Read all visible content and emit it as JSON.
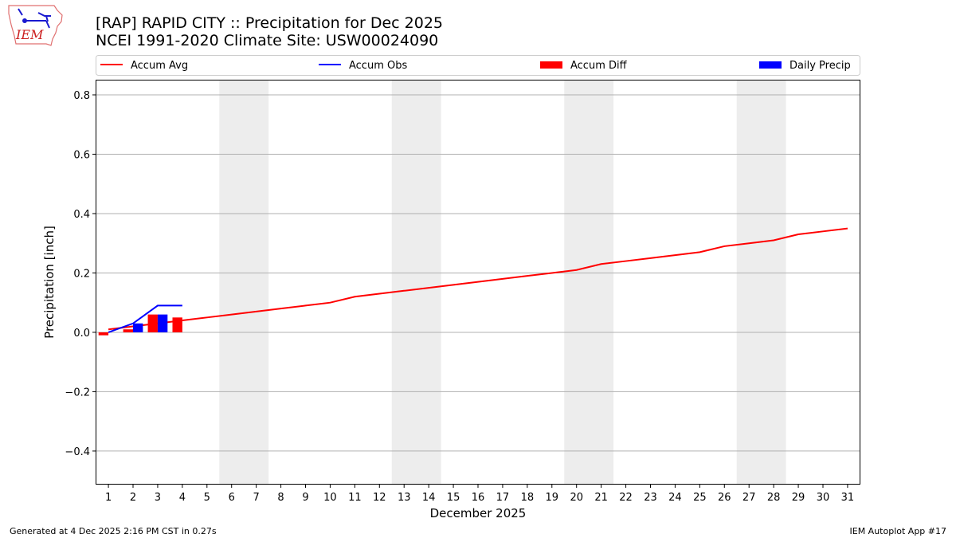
{
  "header": {
    "title_line1": "[RAP] RAPID CITY :: Precipitation for Dec 2025",
    "title_line2": "NCEI 1991-2020 Climate Site: USW00024090",
    "logo_text": "IEM"
  },
  "footer": {
    "generated": "Generated at 4 Dec 2025 2:16 PM CST in 0.27s",
    "app": "IEM Autoplot App #17"
  },
  "chart_data": {
    "type": "bar",
    "xlabel": "December 2025",
    "ylabel": "Precipitation [inch]",
    "xlim": [
      0.48,
      31.52
    ],
    "ylim": [
      -0.513,
      0.851
    ],
    "yticks": [
      -0.4,
      -0.2,
      0.0,
      0.2,
      0.4,
      0.6,
      0.8
    ],
    "ytick_labels": [
      "−0.4",
      "−0.2",
      "0.0",
      "0.2",
      "0.4",
      "0.6",
      "0.8"
    ],
    "xticks": [
      1,
      2,
      3,
      4,
      5,
      6,
      7,
      8,
      9,
      10,
      11,
      12,
      13,
      14,
      15,
      16,
      17,
      18,
      19,
      20,
      21,
      22,
      23,
      24,
      25,
      26,
      27,
      28,
      29,
      30,
      31
    ],
    "grid": "horizontal",
    "legend_placement": "top",
    "weekend_shading": [
      [
        5.5,
        7.5
      ],
      [
        12.5,
        14.5
      ],
      [
        19.5,
        21.5
      ],
      [
        26.5,
        28.5
      ]
    ],
    "series": [
      {
        "name": "Accum Avg",
        "kind": "line",
        "color": "#ff0000",
        "x": [
          1,
          2,
          3,
          4,
          5,
          6,
          7,
          8,
          9,
          10,
          11,
          12,
          13,
          14,
          15,
          16,
          17,
          18,
          19,
          20,
          21,
          22,
          23,
          24,
          25,
          26,
          27,
          28,
          29,
          30,
          31
        ],
        "values": [
          0.01,
          0.02,
          0.03,
          0.04,
          0.05,
          0.06,
          0.07,
          0.08,
          0.09,
          0.1,
          0.12,
          0.13,
          0.14,
          0.15,
          0.16,
          0.17,
          0.18,
          0.19,
          0.2,
          0.21,
          0.23,
          0.24,
          0.25,
          0.26,
          0.27,
          0.29,
          0.3,
          0.31,
          0.33,
          0.34,
          0.35
        ]
      },
      {
        "name": "Accum Obs",
        "kind": "line",
        "color": "#0000ff",
        "x": [
          1,
          2,
          3,
          4
        ],
        "values": [
          0.0,
          0.03,
          0.09,
          0.09
        ]
      },
      {
        "name": "Accum Diff",
        "kind": "bar",
        "color": "#ff0000",
        "offset": -0.2,
        "x": [
          1,
          2,
          3,
          4
        ],
        "values": [
          -0.01,
          0.01,
          0.06,
          0.05
        ]
      },
      {
        "name": "Daily Precip",
        "kind": "bar",
        "color": "#0000ff",
        "offset": 0.2,
        "x": [
          1,
          2,
          3,
          4
        ],
        "values": [
          0.0,
          0.03,
          0.06,
          0.0
        ]
      }
    ]
  }
}
